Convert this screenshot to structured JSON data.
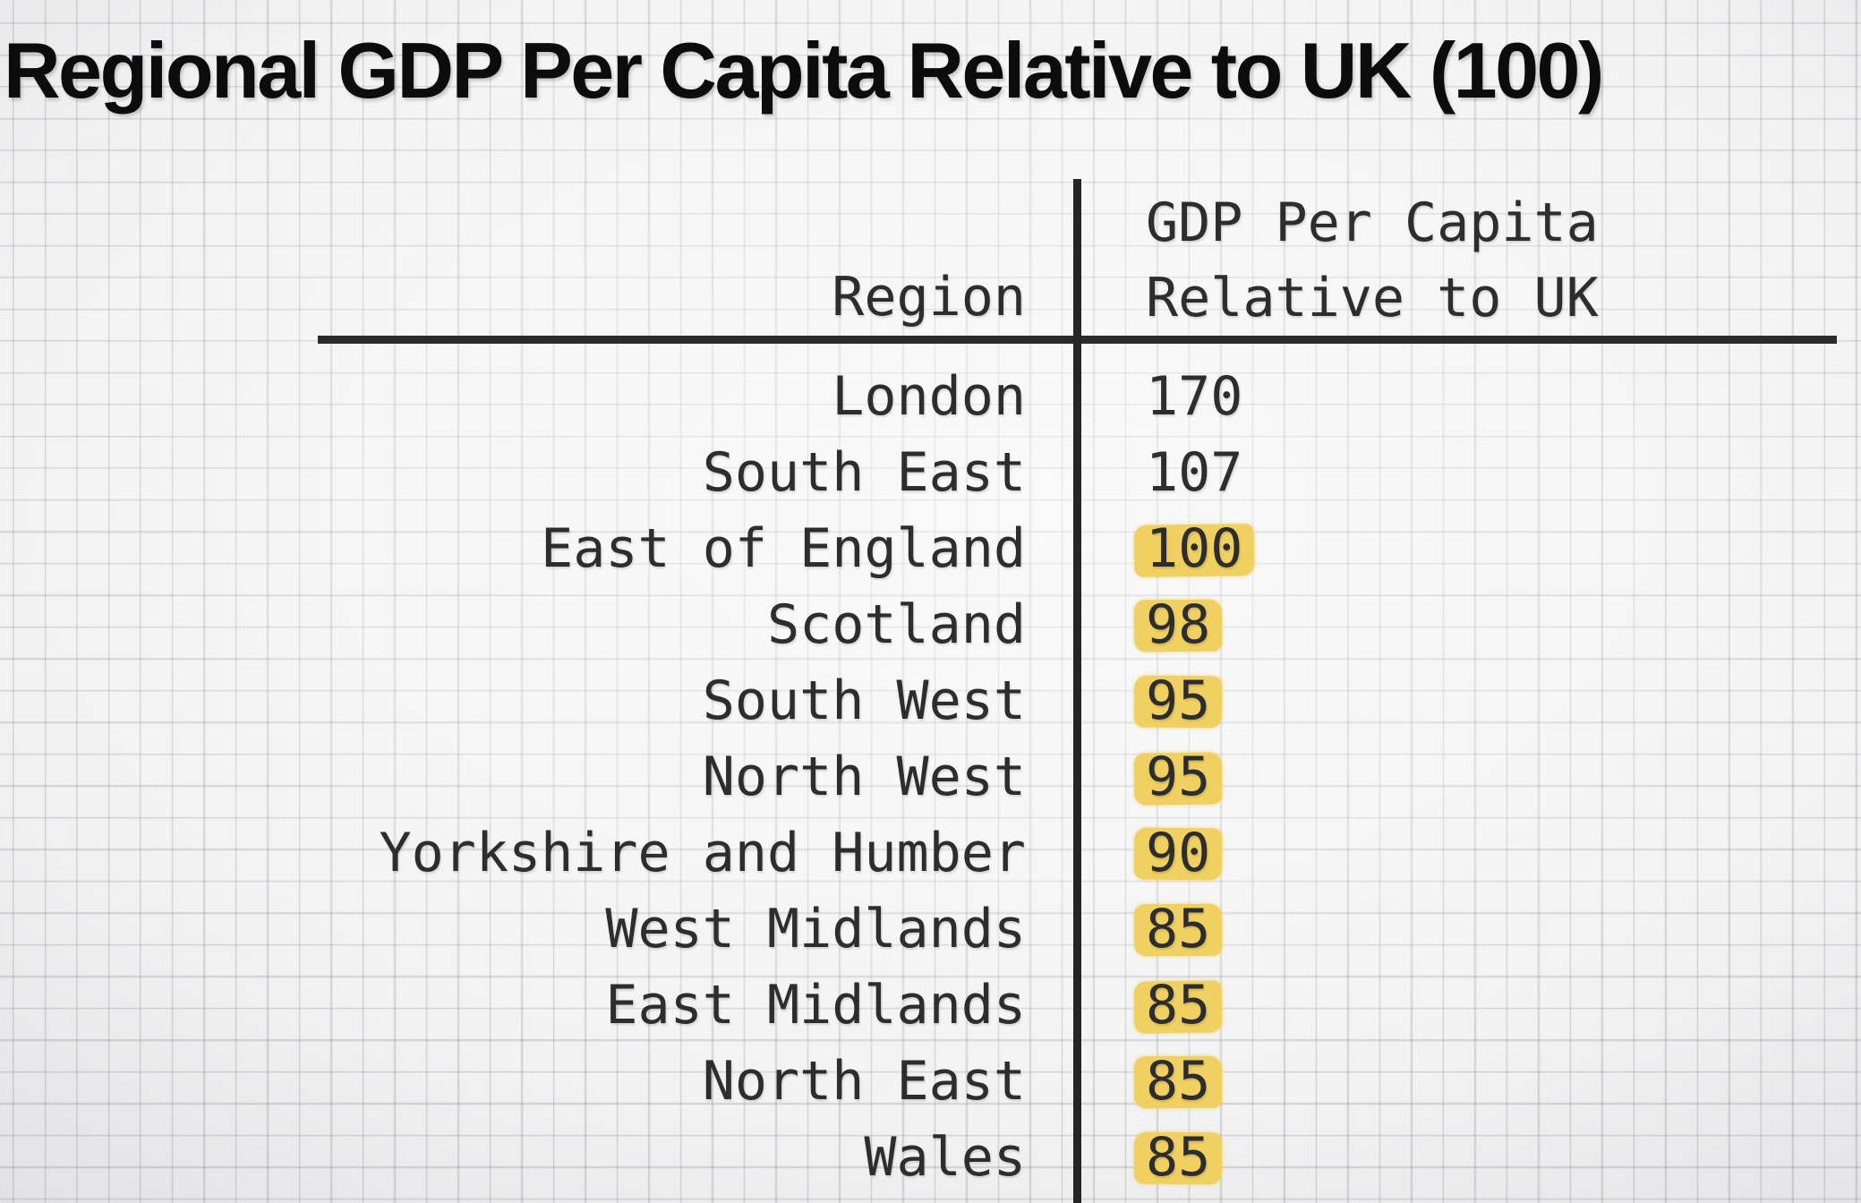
{
  "title": "Regional GDP Per Capita Relative to UK (100)",
  "table": {
    "header": {
      "region_label": "Region",
      "value_label_line1": "GDP Per Capita",
      "value_label_line2": "Relative to UK"
    },
    "rows": [
      {
        "region": "London",
        "value": "170",
        "highlighted": false
      },
      {
        "region": "South East",
        "value": "107",
        "highlighted": false
      },
      {
        "region": "East of England",
        "value": "100",
        "highlighted": true
      },
      {
        "region": "Scotland",
        "value": "98",
        "highlighted": true
      },
      {
        "region": "South West",
        "value": "95",
        "highlighted": true
      },
      {
        "region": "North West",
        "value": "95",
        "highlighted": true
      },
      {
        "region": "Yorkshire and Humber",
        "value": "90",
        "highlighted": true
      },
      {
        "region": "West Midlands",
        "value": "85",
        "highlighted": true
      },
      {
        "region": "East Midlands",
        "value": "85",
        "highlighted": true
      },
      {
        "region": "North East",
        "value": "85",
        "highlighted": true
      },
      {
        "region": "Wales",
        "value": "85",
        "highlighted": true
      }
    ]
  },
  "colors": {
    "highlight_yellow": "#f0d061",
    "text": "#2d2d2f",
    "title_text": "#0c0c0c",
    "table_lines": "#242426",
    "background_center": "#f7f7f8",
    "background_corner": "#c3c3c7",
    "grid_line": "#d2d2d6"
  },
  "chart_data": {
    "type": "table",
    "title": "Regional GDP Per Capita Relative to UK (100)",
    "columns": [
      "Region",
      "GDP Per Capita Relative to UK"
    ],
    "categories": [
      "London",
      "South East",
      "East of England",
      "Scotland",
      "South West",
      "North West",
      "Yorkshire and Humber",
      "West Midlands",
      "East Midlands",
      "North East",
      "Wales"
    ],
    "values": [
      170,
      107,
      100,
      98,
      95,
      95,
      90,
      85,
      85,
      85,
      85
    ],
    "baseline_uk": 100,
    "highlighted_categories": [
      "East of England",
      "Scotland",
      "South West",
      "North West",
      "Yorkshire and Humber",
      "West Midlands",
      "East Midlands",
      "North East",
      "Wales"
    ],
    "notes": "Values at or below 100 are marked with a yellow highlighter; table drawn over graph paper"
  }
}
